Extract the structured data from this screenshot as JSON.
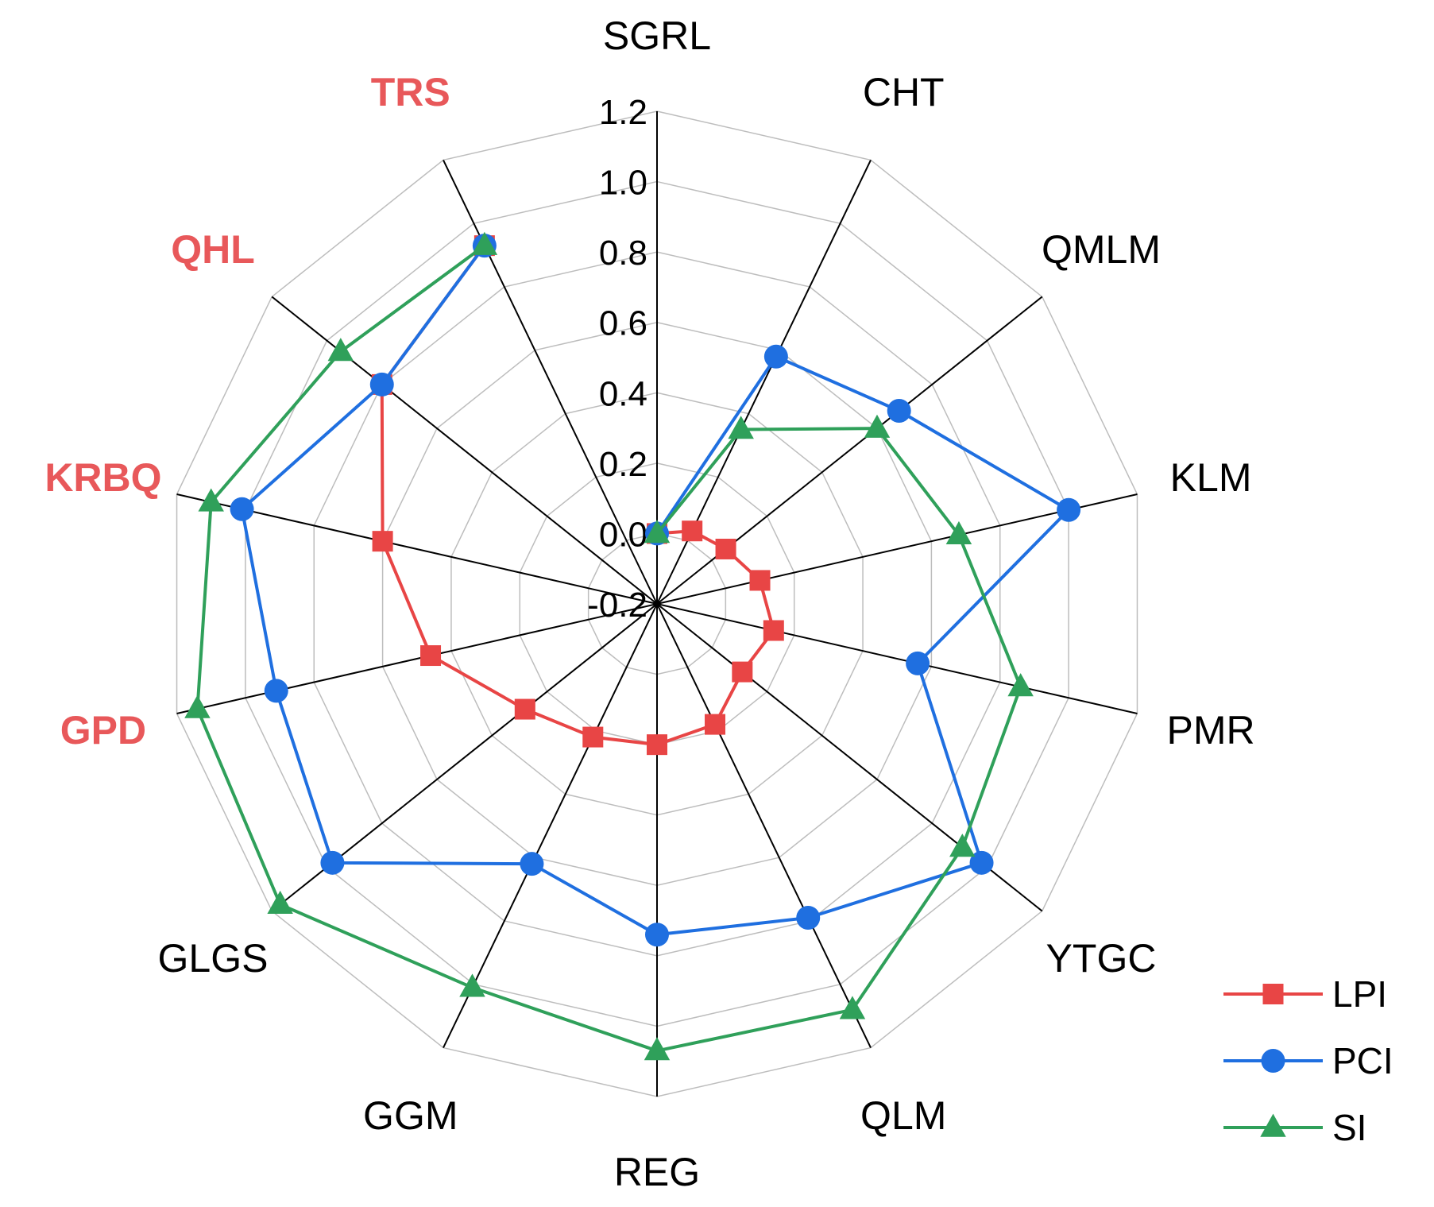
{
  "chart_data": {
    "type": "radar",
    "title": "",
    "categories": [
      "SGRL",
      "CHT",
      "QMLM",
      "KLM",
      "PMR",
      "YTGC",
      "QLM",
      "REG",
      "GGM",
      "GLGS",
      "GPD",
      "KRBQ",
      "QHL",
      "TRS"
    ],
    "highlighted_categories": [
      "GPD",
      "KRBQ",
      "QHL",
      "TRS"
    ],
    "radial_ticks": [
      "-0.2",
      "0.0",
      "0.2",
      "0.4",
      "0.6",
      "0.8",
      "1.0",
      "1.2"
    ],
    "rlim": [
      -0.2,
      1.2
    ],
    "series": [
      {
        "name": "LPI",
        "color": "#e84545",
        "marker": "square",
        "values": [
          0.0,
          0.03,
          0.05,
          0.1,
          0.14,
          0.11,
          0.18,
          0.2,
          0.22,
          0.28,
          0.46,
          0.6,
          0.8,
          0.93
        ]
      },
      {
        "name": "PCI",
        "color": "#1f6fe0",
        "marker": "circle",
        "values": [
          0.0,
          0.58,
          0.68,
          1.0,
          0.56,
          0.98,
          0.79,
          0.74,
          0.62,
          0.98,
          0.91,
          1.01,
          0.8,
          0.93
        ]
      },
      {
        "name": "SI",
        "color": "#2fa05a",
        "marker": "triangle",
        "values": [
          0.0,
          0.35,
          0.6,
          0.68,
          0.86,
          0.91,
          1.08,
          1.07,
          1.01,
          1.17,
          1.14,
          1.1,
          0.95,
          0.93
        ]
      }
    ],
    "legend": {
      "position": "bottom-right",
      "items": [
        "LPI",
        "PCI",
        "SI"
      ]
    }
  }
}
